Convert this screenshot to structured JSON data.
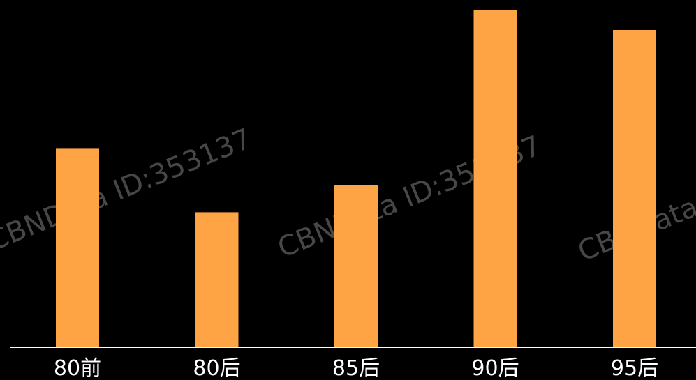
{
  "chart_data": {
    "type": "bar",
    "categories": [
      "80前",
      "80后",
      "85后",
      "90后",
      "95后"
    ],
    "values": [
      59,
      40,
      48,
      100,
      94
    ],
    "ylim": [
      0,
      100
    ],
    "title": "",
    "xlabel": "",
    "ylabel": "",
    "grid": false,
    "legend": "none",
    "colors": {
      "background": "#000000",
      "bar": "#FFA444",
      "axis": "#FFFFFF",
      "tick_label": "#FFFFFF"
    }
  },
  "watermark": {
    "text": "CBNData ID:353137"
  }
}
